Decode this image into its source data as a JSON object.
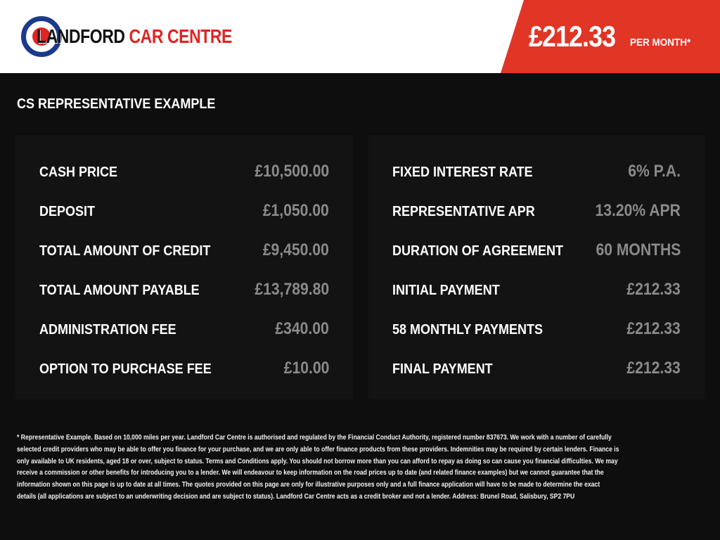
{
  "logo": {
    "text_primary": "LANDFORD",
    "text_secondary": "CAR CENTRE"
  },
  "header": {
    "monthly_price": "£212.33",
    "per_month_label": "PER MONTH*"
  },
  "colors": {
    "accent_red": "#e13526",
    "logo_blue": "#1b3a8c",
    "background": "#0e0e0e",
    "value_gray": "#8a8a8a"
  },
  "section_title": "CS REPRESENTATIVE EXAMPLE",
  "left_panel": [
    {
      "label": "CASH PRICE",
      "value": "£10,500.00"
    },
    {
      "label": "DEPOSIT",
      "value": "£1,050.00"
    },
    {
      "label": "TOTAL AMOUNT OF CREDIT",
      "value": "£9,450.00"
    },
    {
      "label": "TOTAL AMOUNT PAYABLE",
      "value": "£13,789.80"
    },
    {
      "label": "ADMINISTRATION FEE",
      "value": "£340.00"
    },
    {
      "label": "OPTION TO PURCHASE FEE",
      "value": "£10.00"
    }
  ],
  "right_panel": [
    {
      "label": "FIXED INTEREST RATE",
      "value": "6% P.A."
    },
    {
      "label": "REPRESENTATIVE APR",
      "value": "13.20% APR"
    },
    {
      "label": "DURATION OF AGREEMENT",
      "value": "60 MONTHS"
    },
    {
      "label": "INITIAL PAYMENT",
      "value": "£212.33"
    },
    {
      "label": "58 MONTHLY PAYMENTS",
      "value": "£212.33"
    },
    {
      "label": "FINAL PAYMENT",
      "value": "£212.33"
    }
  ],
  "disclaimer_lines": [
    "* Representative Example. Based on 10,000 miles per year. Landford Car Centre is authorised and regulated by the Financial Conduct Authority, registered number 837673. We work with a number of carefully",
    "selected credit providers who may be able to offer you finance for your purchase, and we are only able to offer finance products from these providers. Indemnities may be required by certain lenders. Finance is",
    "only available to UK residents, aged 18 or over, subject to status. Terms and Conditions apply. You should not borrow more than you can afford to repay as doing so can cause you financial difficulties. We may",
    "receive a commission or other benefits for introducing you to a lender. We will endeavour to keep information on the road prices up to date (and related finance examples) but we cannot guarantee that the",
    "information shown on this page is up to date at all times. The quotes provided on this page are only for illustrative purposes only and a full finance application will have to be made to determine the exact",
    "details (all applications are subject to an underwriting decision and are subject to status). Landford Car Centre acts as a credit broker and not a lender. Address: Brunel Road, Salisbury, SP2 7PU"
  ]
}
